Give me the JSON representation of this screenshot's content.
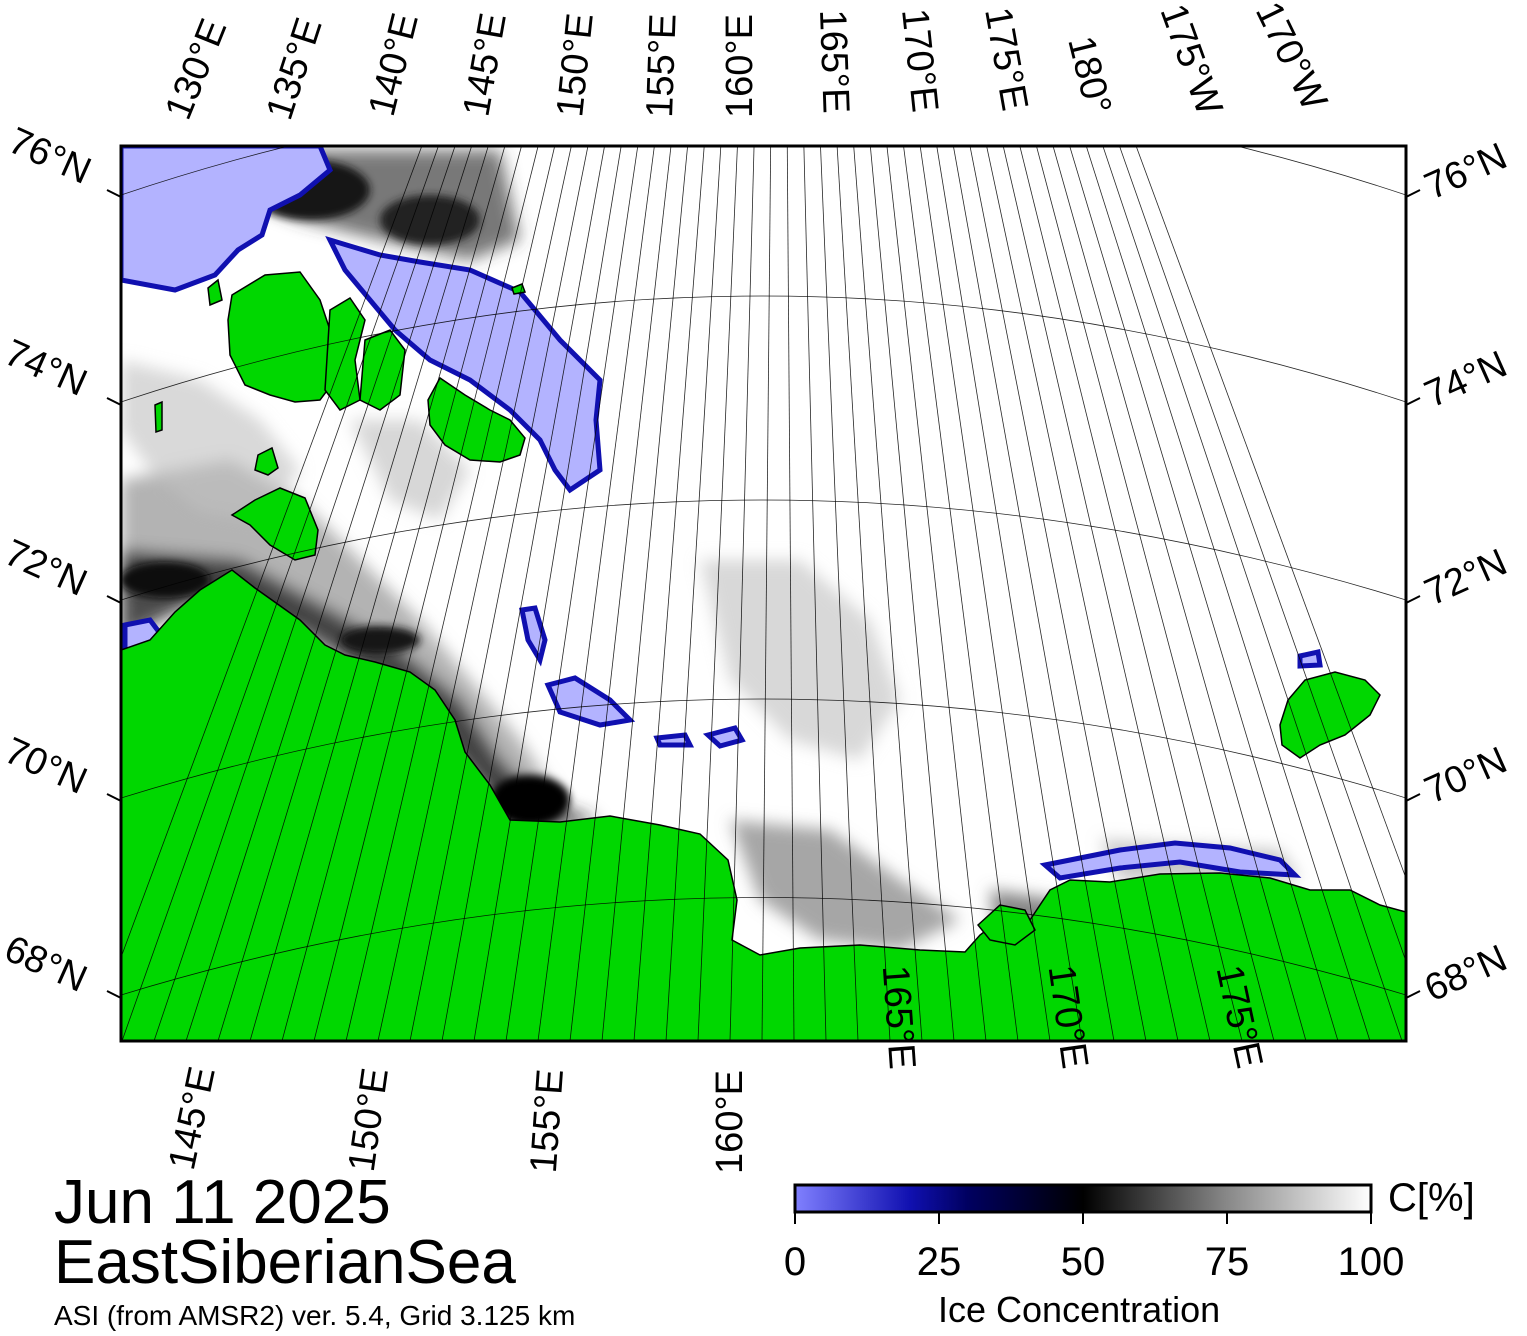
{
  "title": {
    "date": "Jun 11 2025",
    "region": "EastSiberianSea",
    "source_note": "ASI (from AMSR2) ver. 5.4,  Grid 3.125 km"
  },
  "graticule_labels": {
    "top": [
      "130°E",
      "135°E",
      "140°E",
      "145°E",
      "150°E",
      "155°E",
      "160°E",
      "165°E",
      "170°E",
      "175°E",
      "180°",
      "175°W",
      "170°W"
    ],
    "bottom": [
      "145°E",
      "150°E",
      "155°E",
      "160°E",
      "165°E",
      "170°E",
      "175°E"
    ],
    "left": [
      "76°N",
      "74°N",
      "72°N",
      "70°N",
      "68°N"
    ],
    "right": [
      "76°N",
      "74°N",
      "72°N",
      "70°N",
      "68°N"
    ]
  },
  "colorbar": {
    "title": "Ice Concentration",
    "unit": "C[%]",
    "ticks": [
      "0",
      "25",
      "50",
      "75",
      "100"
    ],
    "stops": [
      {
        "value": 0,
        "color": "#8080ff"
      },
      {
        "value": 20,
        "color": "#1010b0"
      },
      {
        "value": 30,
        "color": "#000060"
      },
      {
        "value": 50,
        "color": "#000000"
      },
      {
        "value": 75,
        "color": "#888888"
      },
      {
        "value": 100,
        "color": "#ffffff"
      }
    ]
  },
  "colors": {
    "land": "#00d700",
    "land_mask_gray": "#808080",
    "water_low_ice": "#b3b3ff",
    "open_ice": "#ffffff"
  }
}
